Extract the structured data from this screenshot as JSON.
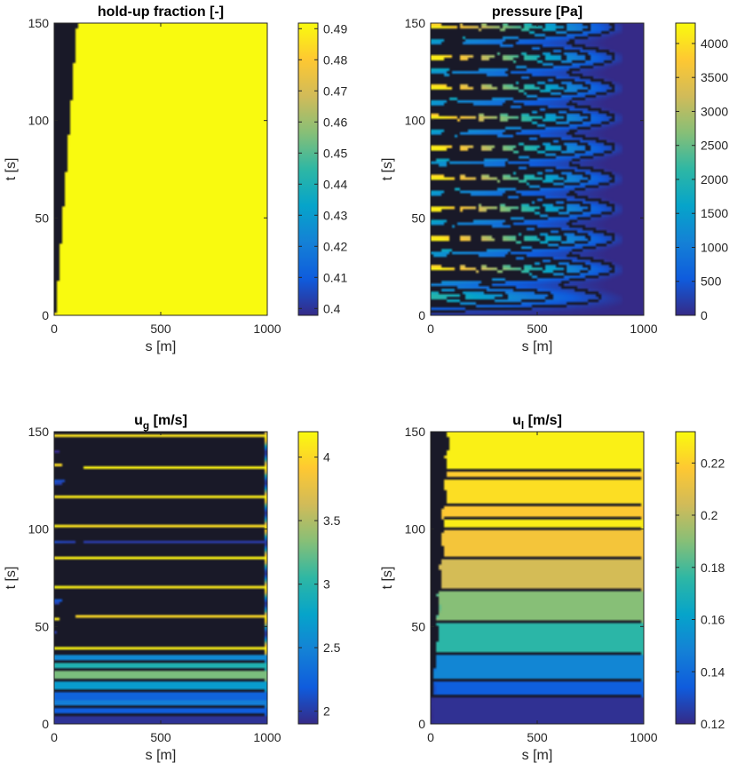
{
  "colors": {
    "parula": [
      "#352a87",
      "#0f5cdd",
      "#1481d6",
      "#06a4ca",
      "#2eb7a4",
      "#87bf77",
      "#d1bb59",
      "#fec832",
      "#f9fb0e"
    ],
    "contour_line": "#000000",
    "axis": "#262626"
  },
  "chart_data": [
    {
      "type": "heatmap",
      "title": "hold-up fraction [-]",
      "xlabel": "s [m]",
      "ylabel": "t [s]",
      "xlim": [
        0,
        1000
      ],
      "ylim": [
        0,
        150
      ],
      "xticks": [
        "0",
        "500",
        "1000"
      ],
      "yticks": [
        "0",
        "50",
        "100",
        "150"
      ],
      "clim": [
        0.3978,
        0.4918
      ],
      "colorbar_ticks": [
        "0.41",
        "0.42",
        "0.43",
        "0.44",
        "0.45",
        "0.46",
        "0.47",
        "0.48",
        "0.49"
      ],
      "colorbar_tick_values": [
        0.41,
        0.42,
        0.43,
        0.44,
        0.45,
        0.46,
        0.47,
        0.48,
        0.49
      ],
      "colorbar_extra_ticks": [
        {
          "label": "0.4",
          "value": 0.4
        }
      ],
      "field": "holdup",
      "levels": [
        0.4,
        0.41,
        0.42,
        0.43,
        0.44,
        0.45,
        0.46,
        0.47,
        0.48,
        0.49
      ],
      "grid": false
    },
    {
      "type": "heatmap",
      "title": "pressure [Pa]",
      "xlabel": "s [m]",
      "ylabel": "t [s]",
      "xlim": [
        0,
        1000
      ],
      "ylim": [
        0,
        150
      ],
      "xticks": [
        "0",
        "500",
        "1000"
      ],
      "yticks": [
        "0",
        "50",
        "100",
        "150"
      ],
      "clim": [
        0,
        4300
      ],
      "colorbar_ticks": [
        "0",
        "500",
        "1000",
        "1500",
        "2000",
        "2500",
        "3000",
        "3500",
        "4000"
      ],
      "colorbar_tick_values": [
        0,
        500,
        1000,
        1500,
        2000,
        2500,
        3000,
        3500,
        4000
      ],
      "field": "pressure",
      "levels": [
        250,
        750,
        1250,
        1750,
        2250,
        2750,
        3250,
        3750
      ],
      "grid": false
    },
    {
      "type": "heatmap",
      "title": "u",
      "title_sub": "g",
      "title_unit": " [m/s]",
      "xlabel": "s [m]",
      "ylabel": "t [s]",
      "xlim": [
        0,
        1000
      ],
      "ylim": [
        0,
        150
      ],
      "xticks": [
        "0",
        "500",
        "1000"
      ],
      "yticks": [
        "0",
        "50",
        "100",
        "150"
      ],
      "clim": [
        1.9,
        4.2
      ],
      "colorbar_ticks": [
        "2",
        "2.5",
        "3",
        "3.5",
        "4"
      ],
      "colorbar_tick_values": [
        2,
        2.5,
        3,
        3.5,
        4
      ],
      "field": "ug",
      "levels": [
        2.0,
        2.25,
        2.5,
        2.75,
        3.0,
        3.25,
        3.5,
        3.75,
        4.0
      ],
      "grid": false
    },
    {
      "type": "heatmap",
      "title": "u",
      "title_sub": "l",
      "title_unit": " [m/s]",
      "xlabel": "s [m]",
      "ylabel": "t [s]",
      "xlim": [
        0,
        1000
      ],
      "ylim": [
        0,
        150
      ],
      "xticks": [
        "0",
        "500",
        "1000"
      ],
      "yticks": [
        "0",
        "50",
        "100",
        "150"
      ],
      "clim": [
        0.12,
        0.232
      ],
      "colorbar_ticks": [
        "0.12",
        "0.14",
        "0.16",
        "0.18",
        "0.2",
        "0.22"
      ],
      "colorbar_tick_values": [
        0.12,
        0.14,
        0.16,
        0.18,
        0.2,
        0.22
      ],
      "field": "ul",
      "levels": [
        0.13,
        0.14,
        0.15,
        0.16,
        0.17,
        0.18,
        0.19,
        0.2,
        0.21,
        0.22,
        0.225
      ],
      "grid": false
    }
  ]
}
